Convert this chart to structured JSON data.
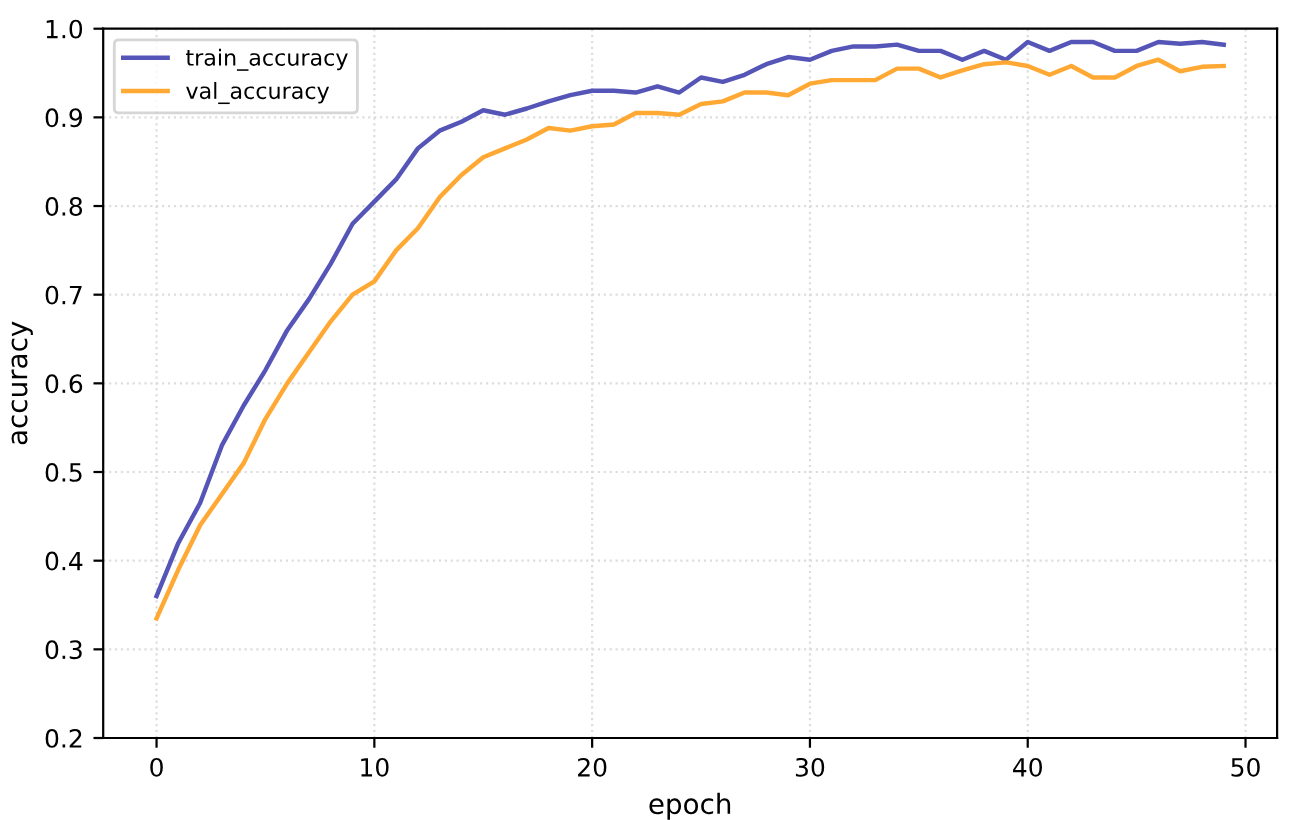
{
  "chart_data": {
    "type": "line",
    "xlabel": "epoch",
    "ylabel": "accuracy",
    "x": [
      0,
      1,
      2,
      3,
      4,
      5,
      6,
      7,
      8,
      9,
      10,
      11,
      12,
      13,
      14,
      15,
      16,
      17,
      18,
      19,
      20,
      21,
      22,
      23,
      24,
      25,
      26,
      27,
      28,
      29,
      30,
      31,
      32,
      33,
      34,
      35,
      36,
      37,
      38,
      39,
      40,
      41,
      42,
      43,
      44,
      45,
      46,
      47,
      48,
      49
    ],
    "series": [
      {
        "name": "train_accuracy",
        "color": "#5555b8",
        "values": [
          0.36,
          0.42,
          0.465,
          0.53,
          0.575,
          0.615,
          0.66,
          0.695,
          0.735,
          0.78,
          0.805,
          0.83,
          0.865,
          0.885,
          0.895,
          0.908,
          0.903,
          0.91,
          0.918,
          0.925,
          0.93,
          0.93,
          0.928,
          0.935,
          0.928,
          0.945,
          0.94,
          0.948,
          0.96,
          0.968,
          0.965,
          0.975,
          0.98,
          0.98,
          0.982,
          0.975,
          0.975,
          0.965,
          0.975,
          0.965,
          0.985,
          0.975,
          0.985,
          0.985,
          0.975,
          0.975,
          0.985,
          0.983,
          0.985,
          0.982
        ]
      },
      {
        "name": "val_accuracy",
        "color": "#ffa833",
        "values": [
          0.335,
          0.39,
          0.44,
          0.475,
          0.51,
          0.56,
          0.6,
          0.635,
          0.67,
          0.7,
          0.715,
          0.75,
          0.775,
          0.81,
          0.835,
          0.855,
          0.865,
          0.875,
          0.888,
          0.885,
          0.89,
          0.892,
          0.905,
          0.905,
          0.903,
          0.915,
          0.918,
          0.928,
          0.928,
          0.925,
          0.938,
          0.942,
          0.942,
          0.942,
          0.955,
          0.955,
          0.945,
          0.953,
          0.96,
          0.962,
          0.958,
          0.948,
          0.958,
          0.945,
          0.945,
          0.958,
          0.965,
          0.952,
          0.957,
          0.958
        ]
      }
    ],
    "xlim": [
      -2.45,
      51.45
    ],
    "xticks": [
      0,
      10,
      20,
      30,
      40,
      50
    ],
    "ylim": [
      0.2,
      1.0
    ],
    "yticks": [
      0.2,
      0.3,
      0.4,
      0.5,
      0.6,
      0.7,
      0.8,
      0.9,
      {
        "value": 1.0,
        "label": "1.0"
      }
    ],
    "grid": true,
    "legend": "top left",
    "line_style": "solid",
    "marker": "none"
  }
}
